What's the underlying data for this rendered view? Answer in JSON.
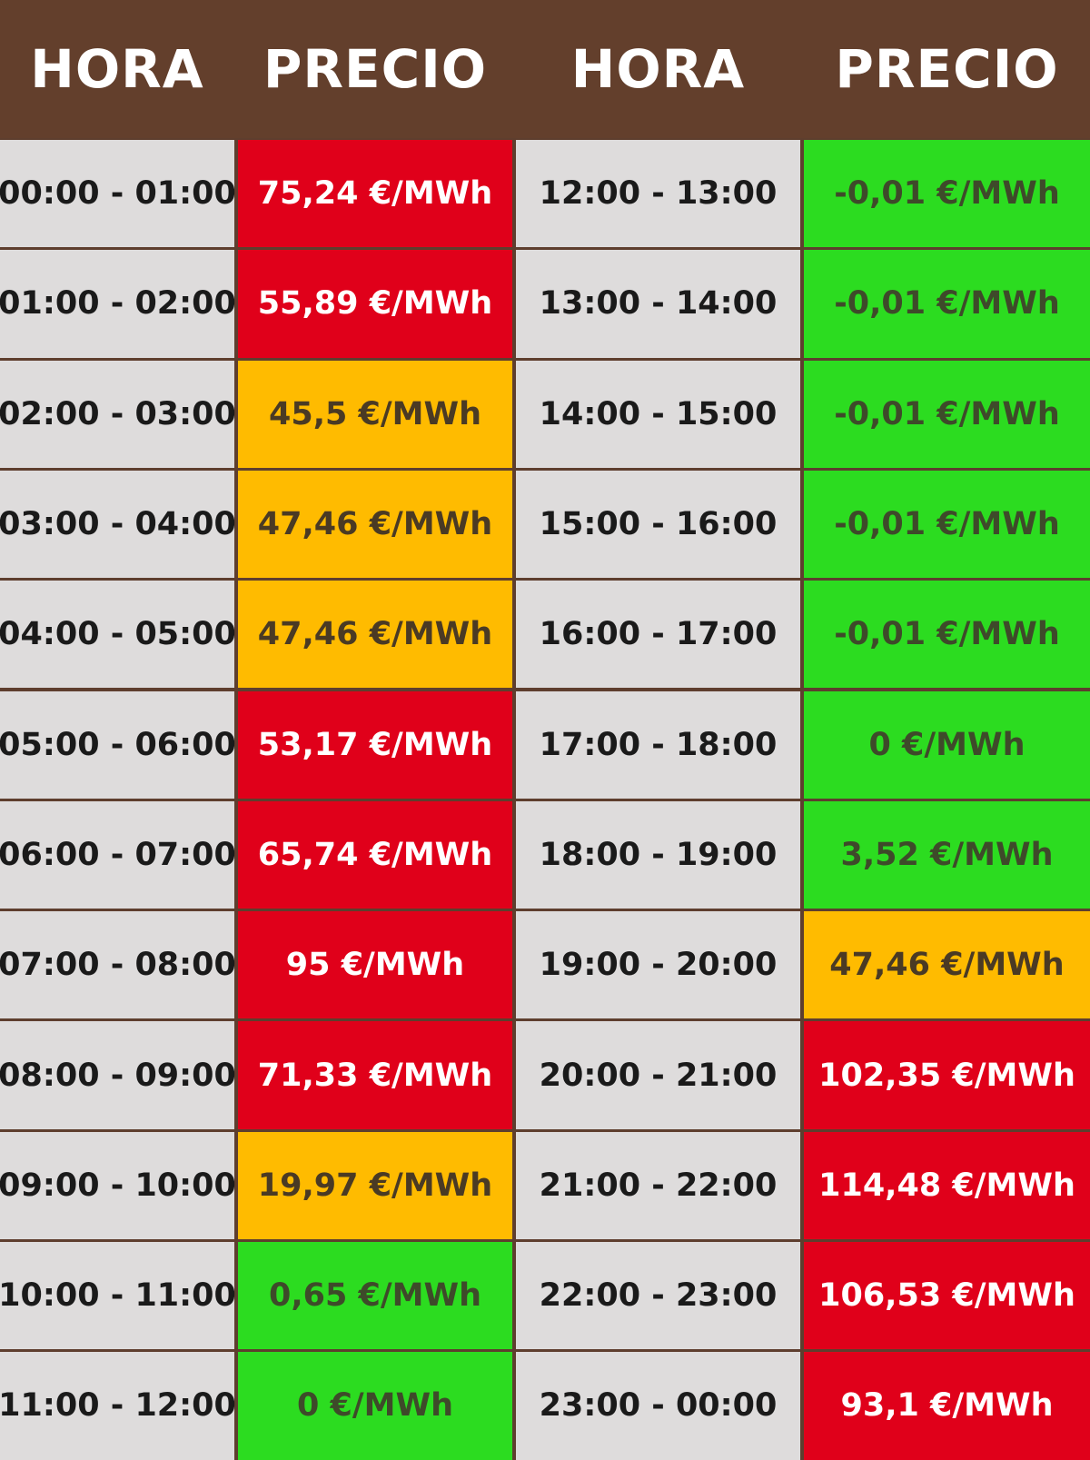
{
  "headers": [
    "HORA",
    "PRECIO",
    "HORA",
    "PRECIO"
  ],
  "colors": {
    "header_bg": "#633f2c",
    "hour_bg": "#dedcdc",
    "red": "#e0001a",
    "orange": "#ffbb00",
    "green": "#2cdc20"
  },
  "rows": [
    {
      "left_hour": "00:00 - 01:00",
      "left_price": "75,24 €/MWh",
      "left_level": "red",
      "right_hour": "12:00 - 13:00",
      "right_price": "-0,01 €/MWh",
      "right_level": "green"
    },
    {
      "left_hour": "01:00 - 02:00",
      "left_price": "55,89 €/MWh",
      "left_level": "red",
      "right_hour": "13:00 - 14:00",
      "right_price": "-0,01 €/MWh",
      "right_level": "green"
    },
    {
      "left_hour": "02:00 - 03:00",
      "left_price": "45,5 €/MWh",
      "left_level": "orange",
      "right_hour": "14:00 - 15:00",
      "right_price": "-0,01 €/MWh",
      "right_level": "green"
    },
    {
      "left_hour": "03:00 - 04:00",
      "left_price": "47,46 €/MWh",
      "left_level": "orange",
      "right_hour": "15:00 - 16:00",
      "right_price": "-0,01 €/MWh",
      "right_level": "green"
    },
    {
      "left_hour": "04:00 - 05:00",
      "left_price": "47,46 €/MWh",
      "left_level": "orange",
      "right_hour": "16:00 - 17:00",
      "right_price": "-0,01 €/MWh",
      "right_level": "green"
    },
    {
      "left_hour": "05:00 - 06:00",
      "left_price": "53,17 €/MWh",
      "left_level": "red",
      "right_hour": "17:00 - 18:00",
      "right_price": "0 €/MWh",
      "right_level": "green"
    },
    {
      "left_hour": "06:00 - 07:00",
      "left_price": "65,74 €/MWh",
      "left_level": "red",
      "right_hour": "18:00 - 19:00",
      "right_price": "3,52 €/MWh",
      "right_level": "green"
    },
    {
      "left_hour": "07:00 - 08:00",
      "left_price": "95 €/MWh",
      "left_level": "red",
      "right_hour": "19:00 - 20:00",
      "right_price": "47,46 €/MWh",
      "right_level": "orange"
    },
    {
      "left_hour": "08:00 - 09:00",
      "left_price": "71,33 €/MWh",
      "left_level": "red",
      "right_hour": "20:00 - 21:00",
      "right_price": "102,35 €/MWh",
      "right_level": "red"
    },
    {
      "left_hour": "09:00 - 10:00",
      "left_price": "19,97 €/MWh",
      "left_level": "orange",
      "right_hour": "21:00 - 22:00",
      "right_price": "114,48 €/MWh",
      "right_level": "red"
    },
    {
      "left_hour": "10:00 - 11:00",
      "left_price": "0,65 €/MWh",
      "left_level": "green",
      "right_hour": "22:00 - 23:00",
      "right_price": "106,53 €/MWh",
      "right_level": "red"
    },
    {
      "left_hour": "11:00 - 12:00",
      "left_price": "0 €/MWh",
      "left_level": "green",
      "right_hour": "23:00 - 00:00",
      "right_price": "93,1 €/MWh",
      "right_level": "red"
    }
  ]
}
